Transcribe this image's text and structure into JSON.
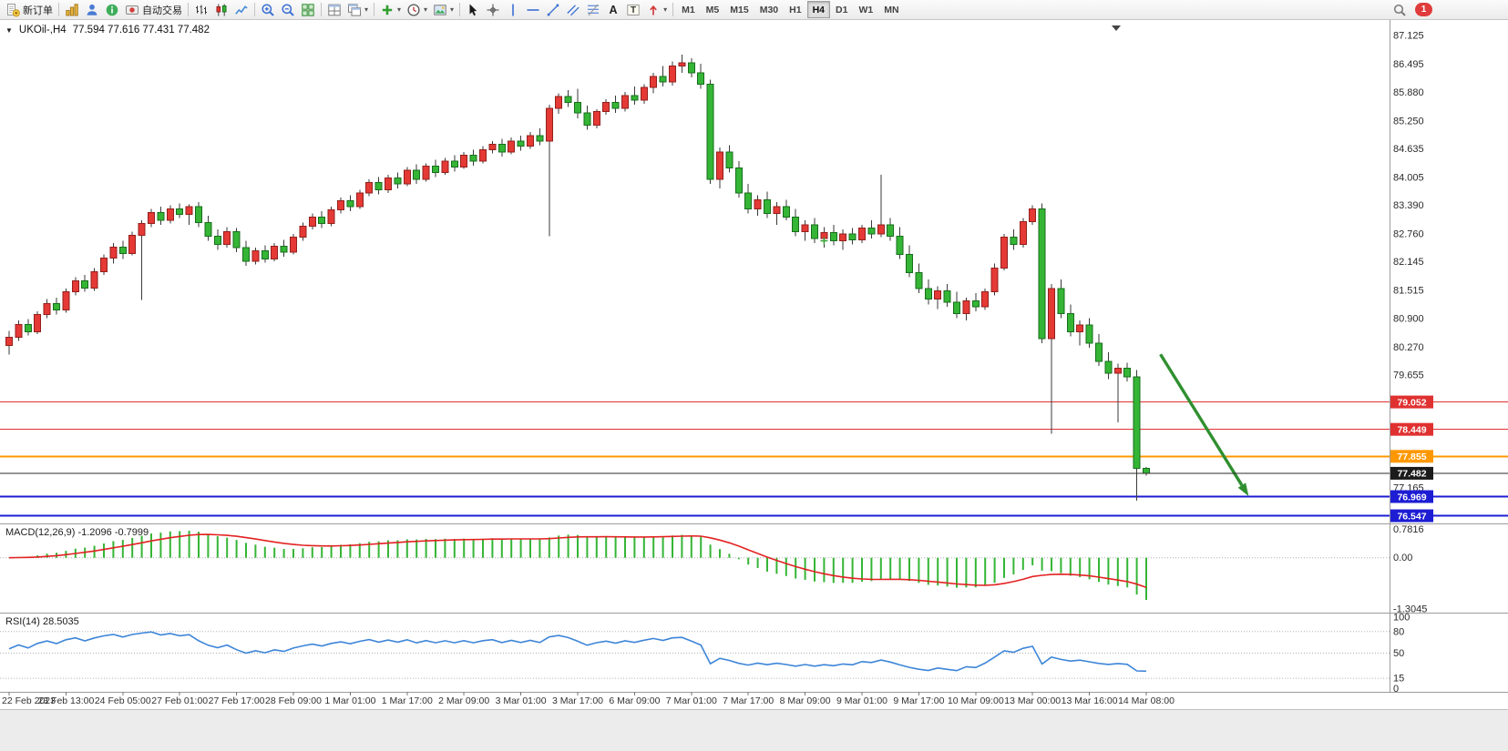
{
  "toolbar": {
    "groups": [
      {
        "items": [
          {
            "name": "new-order-button",
            "icon": "new-order-icon",
            "label": "新订单"
          }
        ]
      },
      {
        "items": [
          {
            "name": "chart-window-button",
            "icon": "chart-window-icon"
          },
          {
            "name": "profile-button",
            "icon": "profile-icon"
          },
          {
            "name": "community-button",
            "icon": "community-icon"
          },
          {
            "name": "autotrading-button",
            "icon": "autotrading-icon",
            "label": "自动交易"
          }
        ]
      },
      {
        "items": [
          {
            "name": "bar-chart-button",
            "icon": "bar-chart-icon"
          },
          {
            "name": "candlestick-chart-button",
            "icon": "candlestick-chart-icon"
          },
          {
            "name": "line-chart-button",
            "icon": "line-chart-icon"
          }
        ]
      },
      {
        "items": [
          {
            "name": "zoom-in-button",
            "icon": "zoom-in-icon"
          },
          {
            "name": "zoom-out-button",
            "icon": "zoom-out-icon"
          },
          {
            "name": "tile-windows-button",
            "icon": "tile-windows-icon"
          }
        ]
      },
      {
        "items": [
          {
            "name": "arrange-windows-button",
            "icon": "arrange-windows-icon"
          },
          {
            "name": "cascade-windows-button",
            "icon": "cascade-windows-icon",
            "caret": true
          }
        ]
      },
      {
        "items": [
          {
            "name": "indicators-button",
            "icon": "indicators-icon",
            "caret": true
          },
          {
            "name": "periods-button",
            "icon": "periods-icon",
            "caret": true
          },
          {
            "name": "templates-button",
            "icon": "templates-icon",
            "caret": true
          }
        ]
      },
      {
        "items": [
          {
            "name": "cursor-button",
            "icon": "cursor-icon"
          },
          {
            "name": "crosshair-button",
            "icon": "crosshair-icon"
          },
          {
            "name": "vertical-line-button",
            "icon": "vertical-line-icon"
          },
          {
            "name": "horizontal-line-button",
            "icon": "horizontal-line-icon"
          },
          {
            "name": "trendline-button",
            "icon": "trendline-icon"
          },
          {
            "name": "channel-button",
            "icon": "channel-icon"
          },
          {
            "name": "fibonacci-button",
            "icon": "fibonacci-icon"
          },
          {
            "name": "text-button",
            "icon": "text-icon"
          },
          {
            "name": "text-label-button",
            "icon": "text-label-icon"
          },
          {
            "name": "arrows-button",
            "icon": "arrows-icon",
            "caret": true
          }
        ]
      }
    ],
    "timeframes": [
      "M1",
      "M5",
      "M15",
      "M30",
      "H1",
      "H4",
      "D1",
      "W1",
      "MN"
    ],
    "active_timeframe": "H4",
    "notification_count": "1"
  },
  "chart": {
    "header": {
      "collapse_icon": "▼",
      "symbol_period": "UKOil-,H4",
      "ohlc": "77.594 77.616 77.431 77.482"
    },
    "price_axis_labels": [
      "87.125",
      "86.495",
      "85.880",
      "85.250",
      "84.635",
      "84.005",
      "83.390",
      "82.760",
      "82.145",
      "81.515",
      "80.900",
      "80.270",
      "79.655",
      "77.165"
    ],
    "bid": {
      "price": 77.482,
      "label": "77.482",
      "color": "#1b1b1b"
    },
    "objects": [
      {
        "type": "hline",
        "price": 79.052,
        "label": "79.052",
        "color": "#e03131",
        "width": 1
      },
      {
        "type": "hline",
        "price": 78.449,
        "label": "78.449",
        "color": "#e03131",
        "width": 1
      },
      {
        "type": "hline",
        "price": 77.855,
        "label": "77.855",
        "color": "#ff9800",
        "width": 2
      },
      {
        "type": "hline",
        "price": 76.969,
        "label": "76.969",
        "color": "#1d1dd4",
        "width": 2
      },
      {
        "type": "hline",
        "price": 76.547,
        "label": "76.547",
        "color": "#1d1dd4",
        "width": 2
      },
      {
        "type": "arrow",
        "from_index": 121.5,
        "from_price": 80.1,
        "to_index": 130.8,
        "to_price": 76.98,
        "color": "#2f8f2f"
      },
      {
        "type": "cross",
        "index": 86,
        "price": 82.6,
        "color": "#2e9e2e"
      }
    ]
  },
  "macd": {
    "label": "MACD(12,26,9) -1.2096 -0.7999",
    "params": [
      12,
      26,
      9
    ],
    "values": [
      -1.2096,
      -0.7999
    ],
    "axis": [
      {
        "text": "0.7816",
        "value": 0.7816
      },
      {
        "text": "0.00",
        "value": 0
      },
      {
        "text": "-1.3045",
        "value": -1.3045
      }
    ],
    "histogram_color": "#35b535",
    "signal_color": "#e32222"
  },
  "rsi": {
    "label": "RSI(14) 28.5035",
    "period": 14,
    "value": 28.5035,
    "axis": [
      {
        "text": "100",
        "value": 100
      },
      {
        "text": "80",
        "value": 80
      },
      {
        "text": "50",
        "value": 50
      },
      {
        "text": "15",
        "value": 15
      },
      {
        "text": "0",
        "value": 0
      }
    ],
    "levels": [
      80,
      50,
      15
    ],
    "line_color": "#3d85d8"
  },
  "chart_data": [
    {
      "type": "candlestick",
      "title": "UKOil-,H4",
      "timeframe": "H4",
      "ylim": [
        76.4,
        87.3
      ],
      "up_color": "#e53935",
      "down_color": "#35b535",
      "color_convention": "red = bullish, green = bearish",
      "bars_per_label": 6,
      "x_labels": [
        "22 Feb 2023",
        "23 Feb 13:00",
        "24 Feb 05:00",
        "27 Feb 01:00",
        "27 Feb 17:00",
        "28 Feb 09:00",
        "1 Mar 01:00",
        "1 Mar 17:00",
        "2 Mar 09:00",
        "3 Mar 01:00",
        "3 Mar 17:00",
        "6 Mar 09:00",
        "7 Mar 01:00",
        "7 Mar 17:00",
        "8 Mar 09:00",
        "9 Mar 01:00",
        "9 Mar 17:00",
        "10 Mar 09:00",
        "13 Mar 00:00",
        "13 Mar 16:00",
        "14 Mar 08:00"
      ],
      "ohlc": [
        [
          80.3,
          80.62,
          80.1,
          80.48
        ],
        [
          80.48,
          80.85,
          80.4,
          80.76
        ],
        [
          80.76,
          80.88,
          80.52,
          80.6
        ],
        [
          80.6,
          81.05,
          80.55,
          80.98
        ],
        [
          80.98,
          81.32,
          80.9,
          81.22
        ],
        [
          81.22,
          81.35,
          80.98,
          81.08
        ],
        [
          81.08,
          81.55,
          81.02,
          81.48
        ],
        [
          81.48,
          81.8,
          81.4,
          81.72
        ],
        [
          81.72,
          81.85,
          81.48,
          81.56
        ],
        [
          81.56,
          82.0,
          81.5,
          81.92
        ],
        [
          81.92,
          82.3,
          81.85,
          82.22
        ],
        [
          82.22,
          82.55,
          82.1,
          82.46
        ],
        [
          82.46,
          82.6,
          82.2,
          82.32
        ],
        [
          82.32,
          82.8,
          82.28,
          82.72
        ],
        [
          82.72,
          83.05,
          81.3,
          82.98
        ],
        [
          82.98,
          83.3,
          82.9,
          83.22
        ],
        [
          83.22,
          83.35,
          82.95,
          83.05
        ],
        [
          83.05,
          83.38,
          82.98,
          83.3
        ],
        [
          83.3,
          83.42,
          83.1,
          83.18
        ],
        [
          83.18,
          83.4,
          82.95,
          83.35
        ],
        [
          83.35,
          83.45,
          82.9,
          83.0
        ],
        [
          83.0,
          83.15,
          82.6,
          82.7
        ],
        [
          82.7,
          82.85,
          82.4,
          82.52
        ],
        [
          82.52,
          82.9,
          82.45,
          82.8
        ],
        [
          82.8,
          82.88,
          82.35,
          82.45
        ],
        [
          82.45,
          82.6,
          82.05,
          82.15
        ],
        [
          82.15,
          82.45,
          82.08,
          82.38
        ],
        [
          82.38,
          82.5,
          82.12,
          82.2
        ],
        [
          82.2,
          82.55,
          82.15,
          82.48
        ],
        [
          82.48,
          82.62,
          82.25,
          82.35
        ],
        [
          82.35,
          82.75,
          82.3,
          82.68
        ],
        [
          82.68,
          83.0,
          82.6,
          82.92
        ],
        [
          82.92,
          83.2,
          82.85,
          83.12
        ],
        [
          83.12,
          83.25,
          82.88,
          82.98
        ],
        [
          82.98,
          83.35,
          82.92,
          83.28
        ],
        [
          83.28,
          83.55,
          83.2,
          83.48
        ],
        [
          83.48,
          83.6,
          83.25,
          83.35
        ],
        [
          83.35,
          83.72,
          83.3,
          83.65
        ],
        [
          83.65,
          83.95,
          83.58,
          83.88
        ],
        [
          83.88,
          84.0,
          83.62,
          83.72
        ],
        [
          83.72,
          84.05,
          83.65,
          83.98
        ],
        [
          83.98,
          84.1,
          83.75,
          83.85
        ],
        [
          83.85,
          84.22,
          83.8,
          84.15
        ],
        [
          84.15,
          84.28,
          83.85,
          83.95
        ],
        [
          83.95,
          84.3,
          83.9,
          84.24
        ],
        [
          84.24,
          84.38,
          84.0,
          84.1
        ],
        [
          84.1,
          84.42,
          84.05,
          84.35
        ],
        [
          84.35,
          84.48,
          84.12,
          84.22
        ],
        [
          84.22,
          84.55,
          84.18,
          84.48
        ],
        [
          84.48,
          84.6,
          84.25,
          84.35
        ],
        [
          84.35,
          84.68,
          84.3,
          84.6
        ],
        [
          84.6,
          84.8,
          84.52,
          84.72
        ],
        [
          84.72,
          84.85,
          84.45,
          84.55
        ],
        [
          84.55,
          84.88,
          84.5,
          84.8
        ],
        [
          84.8,
          84.92,
          84.58,
          84.68
        ],
        [
          84.68,
          85.0,
          84.62,
          84.92
        ],
        [
          84.92,
          85.08,
          84.7,
          84.8
        ],
        [
          84.8,
          85.6,
          82.7,
          85.52
        ],
        [
          85.52,
          85.85,
          85.4,
          85.78
        ],
        [
          85.78,
          85.92,
          85.55,
          85.65
        ],
        [
          85.65,
          85.95,
          85.3,
          85.42
        ],
        [
          85.42,
          85.58,
          85.05,
          85.15
        ],
        [
          85.15,
          85.5,
          85.08,
          85.45
        ],
        [
          85.45,
          85.72,
          85.38,
          85.65
        ],
        [
          85.65,
          85.8,
          85.42,
          85.52
        ],
        [
          85.52,
          85.88,
          85.45,
          85.8
        ],
        [
          85.8,
          86.0,
          85.6,
          85.7
        ],
        [
          85.7,
          86.05,
          85.62,
          85.98
        ],
        [
          85.98,
          86.3,
          85.85,
          86.22
        ],
        [
          86.22,
          86.45,
          86.0,
          86.1
        ],
        [
          86.1,
          86.55,
          86.02,
          86.45
        ],
        [
          86.45,
          86.7,
          86.3,
          86.52
        ],
        [
          86.52,
          86.62,
          86.2,
          86.3
        ],
        [
          86.3,
          86.5,
          85.95,
          86.05
        ],
        [
          86.05,
          86.15,
          83.85,
          83.95
        ],
        [
          83.95,
          84.65,
          83.75,
          84.55
        ],
        [
          84.55,
          84.7,
          84.1,
          84.2
        ],
        [
          84.2,
          84.35,
          83.55,
          83.65
        ],
        [
          83.65,
          83.85,
          83.2,
          83.3
        ],
        [
          83.3,
          83.6,
          83.15,
          83.5
        ],
        [
          83.5,
          83.68,
          83.1,
          83.2
        ],
        [
          83.2,
          83.45,
          82.95,
          83.35
        ],
        [
          83.35,
          83.5,
          83.05,
          83.12
        ],
        [
          83.12,
          83.3,
          82.7,
          82.8
        ],
        [
          82.8,
          83.05,
          82.6,
          82.95
        ],
        [
          82.95,
          83.1,
          82.55,
          82.65
        ],
        [
          82.65,
          82.9,
          82.45,
          82.78
        ],
        [
          82.78,
          82.95,
          82.5,
          82.6
        ],
        [
          82.6,
          82.85,
          82.4,
          82.75
        ],
        [
          82.75,
          82.88,
          82.52,
          82.62
        ],
        [
          82.62,
          82.95,
          82.55,
          82.88
        ],
        [
          82.88,
          83.05,
          82.65,
          82.75
        ],
        [
          82.75,
          84.05,
          82.68,
          82.95
        ],
        [
          82.95,
          83.1,
          82.6,
          82.7
        ],
        [
          82.7,
          82.9,
          82.2,
          82.3
        ],
        [
          82.3,
          82.5,
          81.8,
          81.9
        ],
        [
          81.9,
          82.1,
          81.45,
          81.55
        ],
        [
          81.55,
          81.75,
          81.2,
          81.32
        ],
        [
          81.32,
          81.6,
          81.1,
          81.5
        ],
        [
          81.5,
          81.65,
          81.15,
          81.25
        ],
        [
          81.25,
          81.48,
          80.9,
          81.0
        ],
        [
          81.0,
          81.35,
          80.85,
          81.28
        ],
        [
          81.28,
          81.45,
          81.05,
          81.15
        ],
        [
          81.15,
          81.55,
          81.08,
          81.48
        ],
        [
          81.48,
          82.1,
          81.4,
          82.0
        ],
        [
          82.0,
          82.75,
          81.95,
          82.68
        ],
        [
          82.68,
          82.85,
          82.4,
          82.52
        ],
        [
          82.52,
          83.1,
          82.45,
          83.02
        ],
        [
          83.02,
          83.38,
          82.95,
          83.3
        ],
        [
          83.3,
          83.42,
          80.35,
          80.45
        ],
        [
          80.45,
          81.65,
          78.35,
          81.55
        ],
        [
          81.55,
          81.75,
          80.9,
          81.0
        ],
        [
          81.0,
          81.2,
          80.5,
          80.6
        ],
        [
          80.6,
          80.85,
          80.3,
          80.75
        ],
        [
          80.75,
          80.9,
          80.25,
          80.35
        ],
        [
          80.35,
          80.55,
          79.85,
          79.95
        ],
        [
          79.95,
          80.15,
          79.55,
          79.68
        ],
        [
          79.68,
          79.9,
          78.6,
          79.8
        ],
        [
          79.8,
          79.92,
          79.5,
          79.6
        ],
        [
          79.6,
          79.75,
          76.88,
          77.59
        ],
        [
          77.594,
          77.616,
          77.431,
          77.482
        ]
      ]
    },
    {
      "type": "line",
      "name": "MACD(12,26,9)",
      "derived_from": "candlestick closes",
      "current": [
        -1.2096,
        -0.7999
      ],
      "range": [
        0.7816,
        -1.3045
      ]
    },
    {
      "type": "line",
      "name": "RSI(14)",
      "derived_from": "candlestick closes",
      "current": 28.5035,
      "range": [
        0,
        100
      ]
    }
  ]
}
